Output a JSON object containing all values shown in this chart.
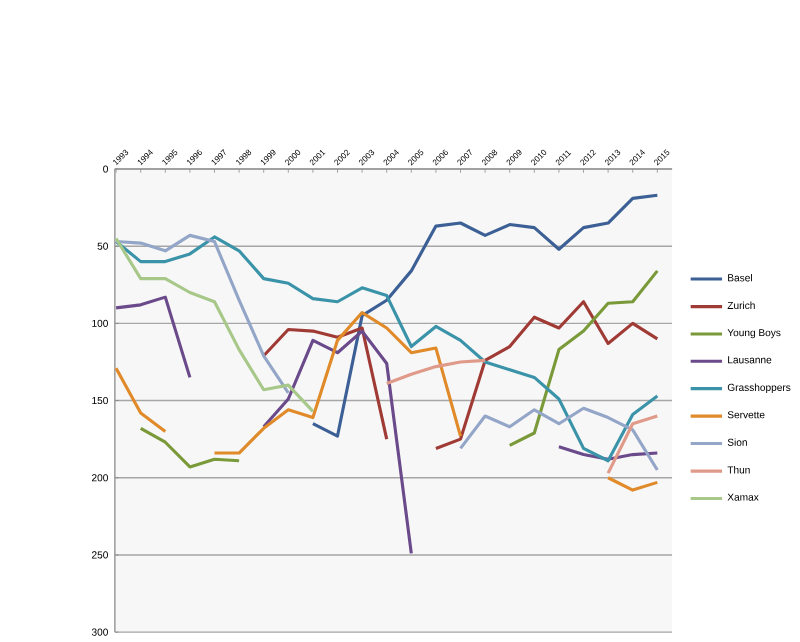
{
  "chart_data": {
    "type": "line",
    "categories": [
      "1993",
      "1994",
      "1995",
      "1996",
      "1997",
      "1998",
      "1999",
      "2000",
      "2001",
      "2002",
      "2003",
      "2004",
      "2005",
      "2006",
      "2007",
      "2008",
      "2009",
      "2010",
      "2011",
      "2012",
      "2013",
      "2014",
      "2015"
    ],
    "ylim": [
      300,
      0
    ],
    "yticks": [
      0,
      50,
      100,
      150,
      200,
      250,
      300
    ],
    "grid": "y",
    "legend": "right",
    "marker": "none",
    "line_style": "solid",
    "series": [
      {
        "name": "Basel",
        "color": "#3c5f95",
        "values": [
          null,
          null,
          null,
          null,
          null,
          null,
          null,
          null,
          165,
          173,
          95,
          85,
          66,
          37,
          35,
          43,
          36,
          38,
          52,
          38,
          35,
          19,
          17
        ]
      },
      {
        "name": "Zurich",
        "color": "#a03a35",
        "values": [
          null,
          null,
          null,
          null,
          null,
          null,
          121,
          104,
          105,
          109,
          103,
          175,
          null,
          181,
          175,
          124,
          115,
          96,
          103,
          86,
          113,
          100,
          110
        ]
      },
      {
        "name": "Young Boys",
        "color": "#7a9a3a",
        "values": [
          null,
          168,
          177,
          193,
          188,
          189,
          null,
          null,
          null,
          null,
          null,
          null,
          null,
          null,
          null,
          null,
          179,
          171,
          117,
          105,
          87,
          86,
          66
        ]
      },
      {
        "name": "Lausanne",
        "color": "#6a4a8a",
        "values": [
          90,
          88,
          83,
          135,
          null,
          null,
          167,
          149,
          111,
          119,
          105,
          126,
          249,
          null,
          null,
          null,
          null,
          null,
          180,
          185,
          188,
          185,
          184
        ]
      },
      {
        "name": "Grasshoppers",
        "color": "#3a93a8",
        "values": [
          47,
          60,
          60,
          55,
          44,
          53,
          71,
          74,
          84,
          86,
          77,
          82,
          115,
          102,
          111,
          125,
          130,
          135,
          149,
          181,
          189,
          159,
          147
        ]
      },
      {
        "name": "Servette",
        "color": "#e08a2a",
        "values": [
          129,
          158,
          170,
          null,
          184,
          184,
          168,
          156,
          161,
          111,
          93,
          103,
          119,
          116,
          173,
          null,
          null,
          null,
          null,
          null,
          200,
          208,
          203
        ]
      },
      {
        "name": "Sion",
        "color": "#94a6c8",
        "values": [
          47,
          48,
          53,
          43,
          47,
          85,
          121,
          145,
          null,
          null,
          null,
          null,
          null,
          null,
          181,
          160,
          167,
          156,
          165,
          155,
          161,
          169,
          195
        ]
      },
      {
        "name": "Thun",
        "color": "#e09a8a",
        "values": [
          null,
          null,
          null,
          null,
          null,
          null,
          null,
          null,
          null,
          null,
          null,
          139,
          133,
          128,
          125,
          124,
          null,
          null,
          null,
          null,
          197,
          165,
          160
        ]
      },
      {
        "name": "Xamax",
        "color": "#a8c88a",
        "values": [
          45,
          71,
          71,
          80,
          86,
          117,
          143,
          140,
          157,
          null,
          null,
          null,
          null,
          null,
          null,
          null,
          null,
          null,
          null,
          null,
          null,
          null,
          null
        ]
      }
    ]
  }
}
